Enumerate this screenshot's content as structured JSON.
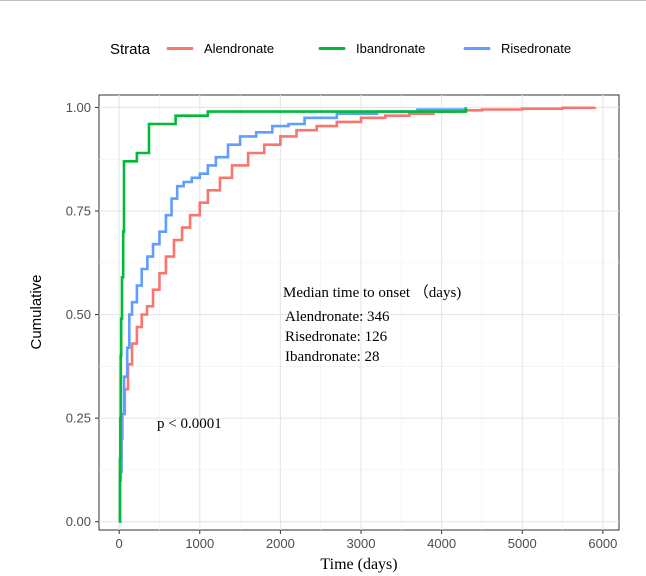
{
  "chart_data": {
    "type": "line",
    "legend": {
      "title": "Strata",
      "placement": "top",
      "entries": [
        {
          "label": "Alendronate",
          "color": "#F8766D"
        },
        {
          "label": "Ibandronate",
          "color": "#00BA38"
        },
        {
          "label": "Risedronate",
          "color": "#619CFF"
        }
      ]
    },
    "xlabel": "Time (days)",
    "ylabel": "Cumulative",
    "xlim": [
      -250,
      6200
    ],
    "ylim": [
      -0.02,
      1.03
    ],
    "xticks": [
      0,
      1000,
      2000,
      3000,
      4000,
      5000,
      6000
    ],
    "yticks": [
      0.0,
      0.25,
      0.5,
      0.75,
      1.0
    ],
    "ytick_labels": [
      "0.00",
      "0.25",
      "0.50",
      "0.75",
      "1.00"
    ],
    "grid": true,
    "step": true,
    "series": [
      {
        "name": "Alendronate",
        "color": "#F8766D",
        "x": [
          0,
          8,
          20,
          40,
          70,
          110,
          160,
          220,
          280,
          346,
          420,
          500,
          580,
          680,
          780,
          880,
          1000,
          1100,
          1250,
          1400,
          1600,
          1800,
          2000,
          2200,
          2450,
          2700,
          3000,
          3300,
          3600,
          3900,
          4200,
          4500,
          5000,
          5500,
          5900
        ],
        "y": [
          0.0,
          0.1,
          0.2,
          0.26,
          0.32,
          0.38,
          0.43,
          0.47,
          0.5,
          0.52,
          0.56,
          0.6,
          0.64,
          0.68,
          0.71,
          0.74,
          0.77,
          0.8,
          0.83,
          0.86,
          0.89,
          0.91,
          0.93,
          0.945,
          0.955,
          0.965,
          0.975,
          0.98,
          0.985,
          0.99,
          0.993,
          0.995,
          0.997,
          0.999,
          1.0
        ]
      },
      {
        "name": "Ibandronate",
        "color": "#00BA38",
        "x": [
          0,
          10,
          15,
          20,
          25,
          28,
          35,
          50,
          60,
          220,
          370,
          700,
          1100,
          2300,
          3700,
          4300
        ],
        "y": [
          0.0,
          0.15,
          0.25,
          0.4,
          0.49,
          0.49,
          0.59,
          0.7,
          0.87,
          0.89,
          0.96,
          0.98,
          0.99,
          0.99,
          0.99,
          1.0
        ]
      },
      {
        "name": "Risedronate",
        "color": "#619CFF",
        "x": [
          0,
          10,
          30,
          60,
          100,
          126,
          160,
          220,
          280,
          350,
          420,
          500,
          580,
          650,
          720,
          800,
          900,
          1000,
          1100,
          1200,
          1350,
          1500,
          1700,
          1900,
          2100,
          2300,
          2700,
          3200,
          3700,
          4300
        ],
        "y": [
          0.0,
          0.12,
          0.26,
          0.35,
          0.42,
          0.5,
          0.53,
          0.57,
          0.61,
          0.64,
          0.67,
          0.7,
          0.74,
          0.78,
          0.81,
          0.82,
          0.83,
          0.84,
          0.86,
          0.88,
          0.91,
          0.93,
          0.94,
          0.955,
          0.96,
          0.975,
          0.985,
          0.99,
          0.995,
          1.0
        ]
      }
    ],
    "annotations": {
      "median_title": "Median time to onset （days)",
      "median_lines": [
        "Alendronate: 346",
        "Risedronate: 126",
        "Ibandronate: 28"
      ],
      "pvalue": "p < 0.0001"
    }
  }
}
